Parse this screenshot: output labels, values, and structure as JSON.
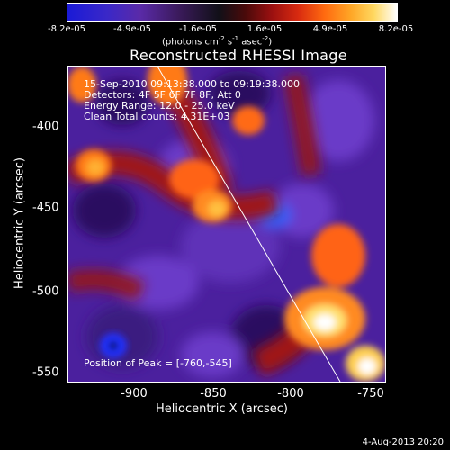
{
  "colorbar": {
    "ticks": [
      "-8.2e-05",
      "-4.9e-05",
      "-1.6e-05",
      "1.6e-05",
      "4.9e-05",
      "8.2e-05"
    ],
    "units_main": "(photons cm",
    "units_exp1": "-2",
    "units_mid": " s",
    "units_exp2": "-1",
    "units_mid2": " asec",
    "units_exp3": "-2",
    "units_end": ")"
  },
  "plot": {
    "title": "Reconstructed RHESSI Image",
    "info_lines": [
      "15-Sep-2010 09:13:38.000 to 09:19:38.000",
      "Detectors: 4F 5F 6F 7F 8F, Att 0",
      "Energy Range: 12.0 - 25.0 keV",
      "Clean     Total counts: 4.31E+03"
    ],
    "peak_label": "Position of Peak = [-760,-545]",
    "xlabel": "Heliocentric X (arcsec)",
    "ylabel": "Heliocentric Y (arcsec)",
    "xticks": [
      "-900",
      "-850",
      "-800",
      "-750"
    ],
    "yticks": [
      "-400",
      "-450",
      "-500",
      "-550"
    ]
  },
  "footer": {
    "date": "4-Aug-2013 20:20"
  }
}
